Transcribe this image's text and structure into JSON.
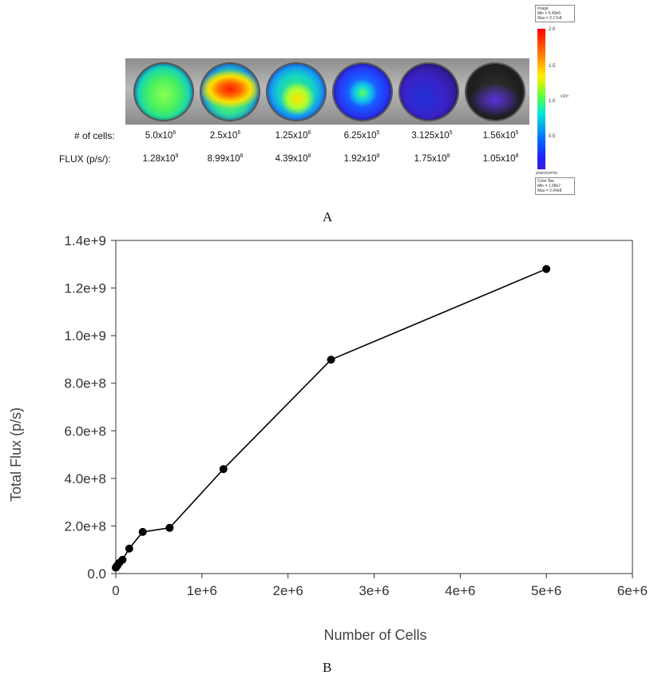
{
  "panel_a": {
    "row_cells_label": "# of cells:",
    "row_flux_label": "FLUX (p/s/):",
    "cells": [
      {
        "m": "5.0x10",
        "e": "6"
      },
      {
        "m": "2.5x10",
        "e": "6"
      },
      {
        "m": "1.25x10",
        "e": "6"
      },
      {
        "m": "6.25x10",
        "e": "5"
      },
      {
        "m": "3.125x10",
        "e": "5"
      },
      {
        "m": "1.56x10",
        "e": "5"
      }
    ],
    "flux": [
      {
        "m": "1.28x10",
        "e": "9"
      },
      {
        "m": "8.99x10",
        "e": "8"
      },
      {
        "m": "4.39x10",
        "e": "8"
      },
      {
        "m": "1.92x10",
        "e": "8"
      },
      {
        "m": "1.75x10",
        "e": "8"
      },
      {
        "m": "1.05x10",
        "e": "8"
      }
    ],
    "colorbar": {
      "top_note": [
        "Image",
        "Min = 5.49e5",
        "Max = 2.17e8"
      ],
      "ticks": [
        "2.0",
        "1.5",
        "1.0",
        "0.5"
      ],
      "exponent": "x10⁸",
      "units": "p/sec/cm²/sr",
      "bottom_note": [
        "Color Bar",
        "Min = 1.08e7",
        "Max = 2.04e8"
      ]
    },
    "caption": "A"
  },
  "panel_b": {
    "caption": "B"
  },
  "chart_data": {
    "type": "line",
    "title": "",
    "xlabel": "Number of Cells",
    "ylabel": "Total Flux (p/s)",
    "xlim": [
      0,
      6000000
    ],
    "ylim": [
      0,
      1400000000
    ],
    "xtick_labels": [
      "0",
      "1e+6",
      "2e+6",
      "3e+6",
      "4e+6",
      "5e+6",
      "6e+6"
    ],
    "ytick_labels": [
      "0.0",
      "2.0e+8",
      "4.0e+8",
      "6.0e+8",
      "8.0e+8",
      "1.0e+9",
      "1.2e+9",
      "1.4e+9"
    ],
    "grid": false,
    "legend": "none",
    "series": [
      {
        "color": "#000000",
        "marker": "circle",
        "points": [
          {
            "x": 0,
            "y": 25000000
          },
          {
            "x": 10000,
            "y": 30000000
          },
          {
            "x": 20000,
            "y": 35000000
          },
          {
            "x": 40000,
            "y": 45000000
          },
          {
            "x": 78000,
            "y": 58000000
          },
          {
            "x": 156000,
            "y": 105000000
          },
          {
            "x": 312500,
            "y": 175000000
          },
          {
            "x": 625000,
            "y": 192000000
          },
          {
            "x": 1250000,
            "y": 439000000
          },
          {
            "x": 2500000,
            "y": 899000000
          },
          {
            "x": 5000000,
            "y": 1280000000
          }
        ]
      }
    ]
  }
}
